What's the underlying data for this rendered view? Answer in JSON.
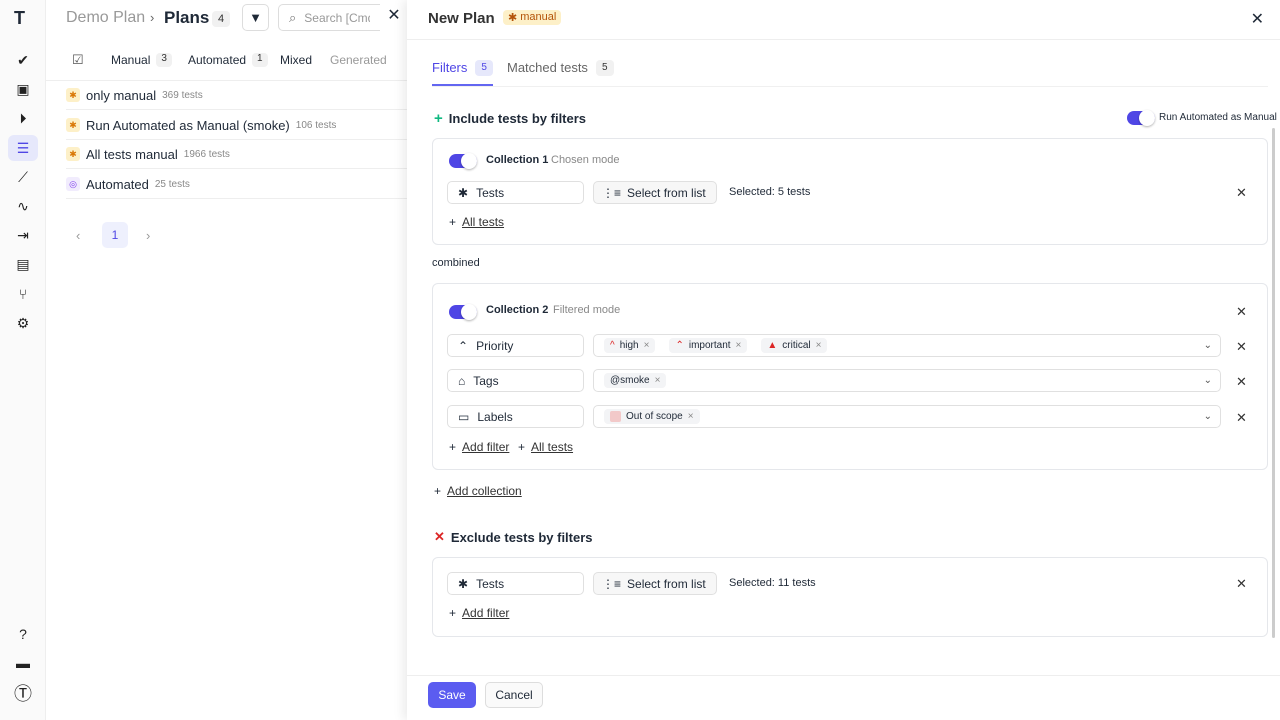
{
  "sidebar": {
    "logo": "T",
    "items": [
      "check-icon",
      "clipboard-check-icon",
      "play-icon",
      "plans-icon",
      "steps-icon",
      "pulse-icon",
      "import-icon",
      "analytics-icon",
      "branch-icon",
      "settings-icon"
    ],
    "bottom": [
      "help-icon",
      "folder-icon",
      "profile-icon"
    ]
  },
  "left": {
    "breadcrumb_parent": "Demo Plan",
    "title": "Plans",
    "count": "4",
    "search_placeholder": "Search [Cmd + K]",
    "tabs": [
      {
        "label": "Manual",
        "count": "3"
      },
      {
        "label": "Automated",
        "count": "1"
      },
      {
        "label": "Mixed"
      },
      {
        "label": "Generated"
      }
    ],
    "plans": [
      {
        "name": "only manual",
        "tests": "369 tests",
        "type": "manual"
      },
      {
        "name": "Run Automated as Manual (smoke)",
        "tests": "106 tests",
        "type": "manual"
      },
      {
        "name": "All tests manual",
        "tests": "1966 tests",
        "type": "manual"
      },
      {
        "name": "Automated",
        "tests": "25 tests",
        "type": "automated"
      }
    ],
    "page": "1"
  },
  "panel": {
    "title": "New Plan",
    "type_badge": "manual",
    "tabs": [
      {
        "label": "Filters",
        "count": "5"
      },
      {
        "label": "Matched tests",
        "count": "5"
      }
    ],
    "include_title": "Include tests by filters",
    "run_automated_label": "Run Automated as Manual",
    "run_automated_on": true,
    "collection1": {
      "name": "Collection 1",
      "mode": "Chosen mode",
      "field": "Tests",
      "select_btn": "Select from list",
      "selected": "Selected: 5 tests",
      "add": "All tests"
    },
    "combined": "combined",
    "collection2": {
      "name": "Collection 2",
      "mode": "Filtered mode",
      "filters": [
        {
          "field": "Priority",
          "values": [
            "high",
            "important",
            "critical"
          ]
        },
        {
          "field": "Tags",
          "values": [
            "@smoke"
          ]
        },
        {
          "field": "Labels",
          "values": [
            "Out of scope"
          ]
        }
      ],
      "add_filter": "Add filter",
      "add_all": "All tests"
    },
    "add_collection": "Add collection",
    "exclude_title": "Exclude tests by filters",
    "exclude": {
      "field": "Tests",
      "select_btn": "Select from list",
      "selected": "Selected: 11 tests",
      "add_filter": "Add filter"
    },
    "save": "Save",
    "cancel": "Cancel"
  },
  "colors": {
    "accent": "#4f46e5",
    "include": "#10b981",
    "exclude": "#dc2626",
    "manual_badge_bg": "#fdf0c8"
  }
}
